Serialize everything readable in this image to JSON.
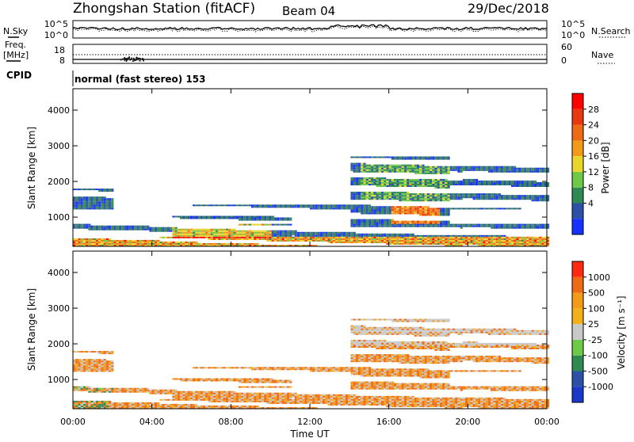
{
  "header": {
    "station": "Zhongshan Station (fitACF)",
    "beam": "Beam 04",
    "date": "29/Dec/2018"
  },
  "status_panels": {
    "nsky_label": "N.Sky",
    "nsky_ticks": [
      "10^5",
      "10^0"
    ],
    "nsearch_label": "N.Search",
    "nsearch_ticks": [
      "10^5",
      "10^0"
    ],
    "freq_label_1": "Freq.",
    "freq_label_2": "[MHz]",
    "freq_ticks": [
      "18",
      "8"
    ],
    "nave_label": "Nave",
    "nave_ticks": [
      "60",
      "0"
    ],
    "cpid_label": "CPID",
    "cpid_value": "normal (fast stereo) 153"
  },
  "chart_data": [
    {
      "type": "heatmap",
      "panel": "power",
      "ylabel": "Slant Range [km]",
      "ylim": [
        180,
        4600
      ],
      "y_ticks": [
        1000,
        2000,
        3000,
        4000
      ],
      "x_ticks": [
        "00:00",
        "04:00",
        "08:00",
        "12:00",
        "16:00",
        "20:00",
        "00:00"
      ],
      "xlim_hours": [
        0,
        24
      ],
      "colorbar_label": "Power [dB]",
      "colorbar_ticks": [
        "28",
        "24",
        "20",
        "16",
        "12",
        "8",
        "4"
      ],
      "colorbar_colors": [
        "#1530ff",
        "#2c52a8",
        "#2f8a52",
        "#6ec948",
        "#e8d62a",
        "#f29a1a",
        "#ee6a14",
        "#e8380f",
        "#ff0000"
      ]
    },
    {
      "type": "heatmap",
      "panel": "velocity",
      "ylabel": "Slant Range [km]",
      "ylim": [
        180,
        4600
      ],
      "y_ticks": [
        1000,
        2000,
        3000,
        4000
      ],
      "x_ticks": [
        "00:00",
        "04:00",
        "08:00",
        "12:00",
        "16:00",
        "20:00",
        "00:00"
      ],
      "xlabel": "Time UT",
      "xlim_hours": [
        0,
        24
      ],
      "colorbar_label": "Velocity [m s⁻¹]",
      "colorbar_ticks": [
        "1000",
        "500",
        "100",
        "25",
        "-25",
        "-100",
        "-500",
        "-1000"
      ],
      "colorbar_colors": [
        "#1838c8",
        "#2c52a8",
        "#2f8a52",
        "#6ec948",
        "#c8c8c8",
        "#f2b01a",
        "#f29a1a",
        "#ee6a14",
        "#ff2a10"
      ]
    }
  ]
}
